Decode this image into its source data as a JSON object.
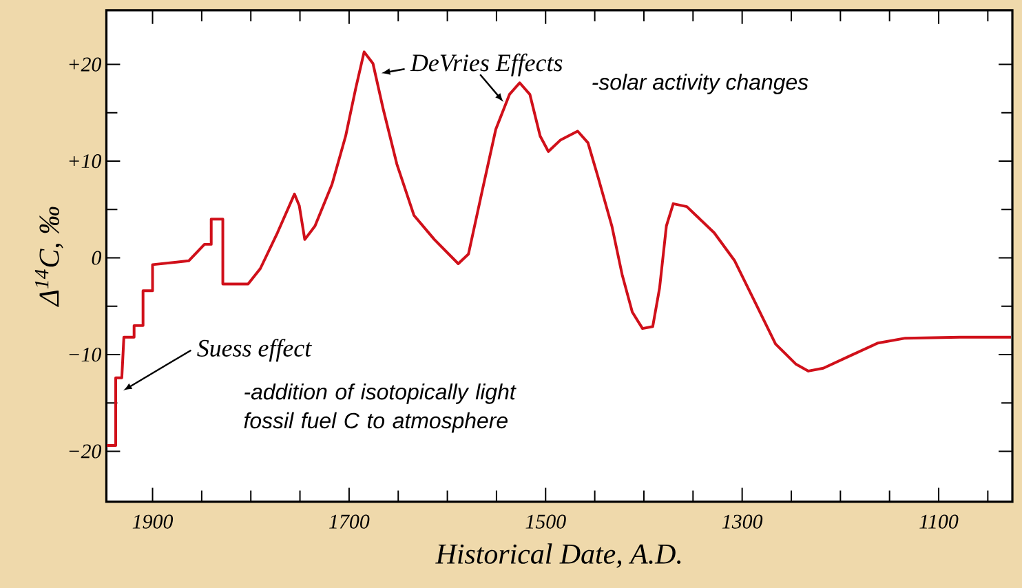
{
  "chart_data": {
    "type": "line",
    "xlabel": "Historical Date, A.D.",
    "ylabel": "Δ$^{14}$C, ‰",
    "x": [
      1946.5,
      1937.5,
      1937.5,
      1931.3,
      1929.2,
      1918.8,
      1918.8,
      1909.7,
      1909.7,
      1900,
      1900,
      1863.2,
      1847.2,
      1840.3,
      1840.3,
      1828.5,
      1828.5,
      1802.8,
      1790.3,
      1772.9,
      1755.6,
      1750.7,
      1745.1,
      1734.7,
      1717.4,
      1703.5,
      1693.1,
      1684.7,
      1675.7,
      1665.3,
      1651.4,
      1634.0,
      1613.2,
      1588.9,
      1578.5,
      1564.6,
      1550.7,
      1536.8,
      1526.4,
      1516.0,
      1505.6,
      1497.2,
      1484.7,
      1467.4,
      1456.9,
      1446.5,
      1432.6,
      1422.2,
      1411.8,
      1401.4,
      1391.0,
      1384.0,
      1377.1,
      1370.1,
      1356.3,
      1328.5,
      1307.6,
      1286.8,
      1266.0,
      1245.1,
      1232.6,
      1217.4,
      1189.6,
      1161.8,
      1134.0,
      1078.5,
      1026.4
    ],
    "series": [
      {
        "color": "#d0101a",
        "values": [
          -19.4,
          -19.4,
          -12.4,
          -12.4,
          -8.2,
          -8.2,
          -7.0,
          -7.0,
          -3.4,
          -3.4,
          -0.7,
          -0.3,
          1.4,
          1.4,
          4.0,
          4.0,
          -2.7,
          -2.7,
          -1.1,
          2.6,
          6.6,
          5.4,
          1.9,
          3.3,
          7.6,
          12.6,
          17.6,
          21.3,
          20.1,
          15.4,
          9.7,
          4.4,
          1.9,
          -0.6,
          0.4,
          6.9,
          13.3,
          16.9,
          18.1,
          16.9,
          12.6,
          11.0,
          12.2,
          13.1,
          11.9,
          8.3,
          3.3,
          -1.7,
          -5.6,
          -7.3,
          -7.1,
          -3.1,
          3.3,
          5.6,
          5.3,
          2.6,
          -0.3,
          -4.6,
          -8.9,
          -11.0,
          -11.7,
          -11.4,
          -10.1,
          -8.8,
          -8.3,
          -8.2,
          -8.2
        ]
      }
    ],
    "xlim": [
      1947,
      1025
    ],
    "ylim": [
      -25.2,
      25.6
    ],
    "xticks": [
      {
        "value": 1900,
        "label": "1900"
      },
      {
        "value": 1850,
        "label": null
      },
      {
        "value": 1800,
        "label": null
      },
      {
        "value": 1750,
        "label": null
      },
      {
        "value": 1700,
        "label": "1700"
      },
      {
        "value": 1650,
        "label": null
      },
      {
        "value": 1600,
        "label": null
      },
      {
        "value": 1550,
        "label": null
      },
      {
        "value": 1500,
        "label": "1500"
      },
      {
        "value": 1450,
        "label": null
      },
      {
        "value": 1400,
        "label": null
      },
      {
        "value": 1350,
        "label": null
      },
      {
        "value": 1300,
        "label": "1300"
      },
      {
        "value": 1250,
        "label": null
      },
      {
        "value": 1200,
        "label": null
      },
      {
        "value": 1150,
        "label": null
      },
      {
        "value": 1100,
        "label": "1100"
      },
      {
        "value": 1050,
        "label": null
      }
    ],
    "yticks": [
      {
        "value": -20,
        "label": "−20"
      },
      {
        "value": -15,
        "label": null
      },
      {
        "value": -10,
        "label": "−10"
      },
      {
        "value": -5,
        "label": null
      },
      {
        "value": 0,
        "label": "0"
      },
      {
        "value": 5,
        "label": null
      },
      {
        "value": 10,
        "label": "+10"
      },
      {
        "value": 15,
        "label": null
      },
      {
        "value": 20,
        "label": "+20"
      }
    ],
    "annotations": [
      {
        "text": "DeVries Effects",
        "x": 1670,
        "y": 19.1
      },
      "-solar activity changes",
      "Suess effect",
      "-addition of isotopically light fossil fuel C to atmosphere"
    ],
    "grid": false,
    "legend": false,
    "line_style": "solid",
    "marker": "none"
  }
}
